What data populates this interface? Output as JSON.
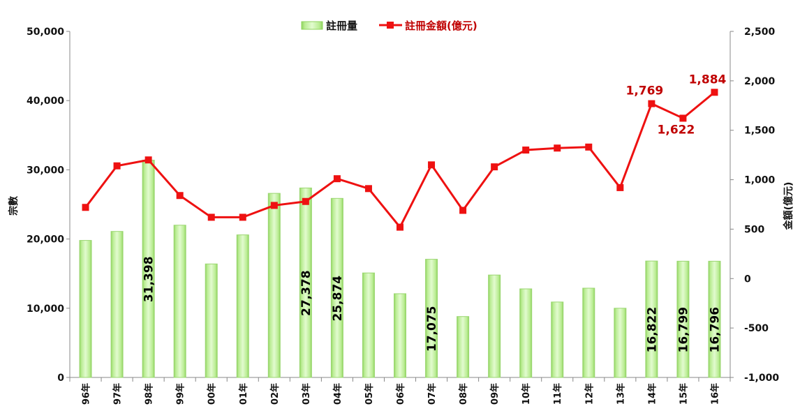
{
  "chart_data": {
    "type": "bar",
    "categories": [
      "96年",
      "97年",
      "98年",
      "99年",
      "00年",
      "01年",
      "02年",
      "03年",
      "04年",
      "05年",
      "06年",
      "07年",
      "08年",
      "09年",
      "10年",
      "11年",
      "12年",
      "13年",
      "14年",
      "15年",
      "16年"
    ],
    "series": [
      {
        "name": "註冊量",
        "type": "bar",
        "axis": "left",
        "color": "#b6ea8c",
        "values": [
          19800,
          21100,
          31398,
          22000,
          16400,
          20600,
          26600,
          27378,
          25874,
          15100,
          12100,
          17075,
          8800,
          14800,
          12800,
          10900,
          12900,
          10000,
          16822,
          16799,
          16796
        ]
      },
      {
        "name": "註冊金額(億元)",
        "type": "line",
        "axis": "right",
        "color": "#ee1111",
        "values": [
          720,
          1140,
          1200,
          840,
          620,
          620,
          740,
          780,
          1010,
          910,
          520,
          1150,
          690,
          1130,
          1300,
          1320,
          1330,
          920,
          1769,
          1622,
          1884
        ]
      }
    ],
    "bar_labels": [
      {
        "index": 2,
        "text": "31,398"
      },
      {
        "index": 7,
        "text": "27,378"
      },
      {
        "index": 8,
        "text": "25,874"
      },
      {
        "index": 11,
        "text": "17,075"
      },
      {
        "index": 18,
        "text": "16,822"
      },
      {
        "index": 19,
        "text": "16,799"
      },
      {
        "index": 20,
        "text": "16,796"
      }
    ],
    "line_labels": [
      {
        "index": 18,
        "text": "1,769"
      },
      {
        "index": 19,
        "text": "1,622"
      },
      {
        "index": 20,
        "text": "1,884"
      }
    ],
    "ylabel": "宗數",
    "y2label": "金額(億元)",
    "ylim": [
      0,
      50000
    ],
    "y2lim": [
      -1000,
      2500
    ],
    "yticks": [
      "0",
      "10,000",
      "20,000",
      "30,000",
      "40,000",
      "50,000"
    ],
    "y2ticks": [
      "-1,000",
      "-500",
      "0",
      "500",
      "1,000",
      "1,500",
      "2,000",
      "2,500"
    ],
    "grid": false,
    "legend_position": "top-center"
  }
}
